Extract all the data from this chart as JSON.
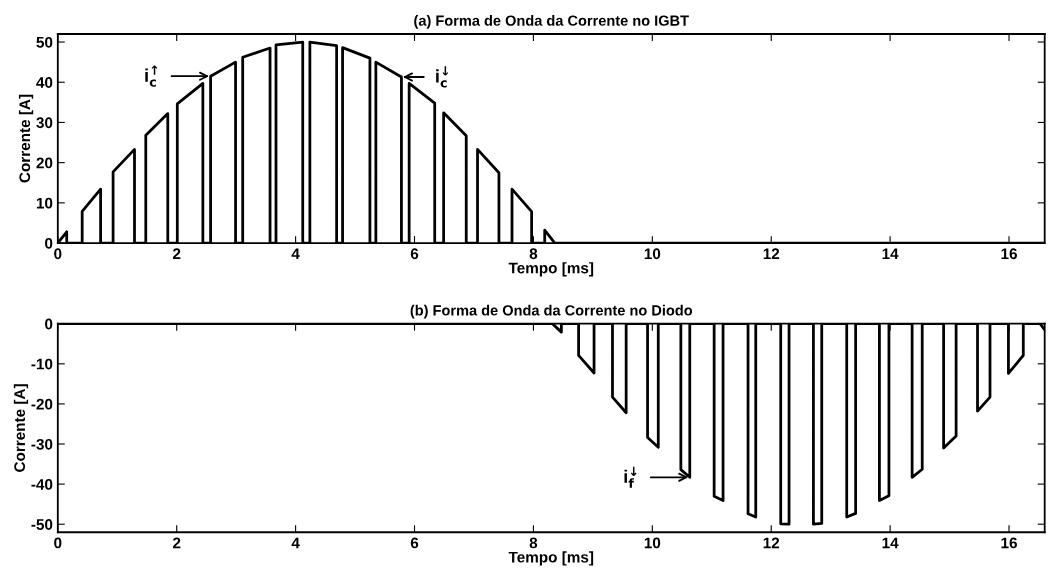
{
  "chart_data": [
    {
      "type": "line",
      "title": "(a) Forma de Onda da Corrente no IGBT",
      "xlabel": "Tempo [ms]",
      "ylabel": "Corrente [A]",
      "xlim": [
        0,
        16.6
      ],
      "ylim": [
        0,
        52
      ],
      "xticks": [
        0,
        2,
        4,
        6,
        8,
        10,
        12,
        14,
        16
      ],
      "yticks": [
        0,
        10,
        20,
        30,
        40,
        50
      ],
      "series": [
        {
          "color": "#000000",
          "x": [
            0,
            0.15,
            0.15,
            0.41,
            0.41,
            0.72,
            0.72,
            0.93,
            0.93,
            1.29,
            1.29,
            1.48,
            1.48,
            1.85,
            1.85,
            2.01,
            2.01,
            2.44,
            2.44,
            2.57,
            2.57,
            2.99,
            2.99,
            3.11,
            3.11,
            3.57,
            3.57,
            3.67,
            3.67,
            4.12,
            4.12,
            4.24,
            4.24,
            4.69,
            4.69,
            4.79,
            4.79,
            5.25,
            5.25,
            5.35,
            5.35,
            5.78,
            5.78,
            5.91,
            5.91,
            6.34,
            6.34,
            6.49,
            6.49,
            6.87,
            6.87,
            7.06,
            7.06,
            7.42,
            7.42,
            7.64,
            7.64,
            7.97,
            7.97,
            8.19,
            8.19,
            8.36,
            16.6
          ],
          "values": [
            0,
            2.8,
            0,
            0,
            7.9,
            13.4,
            0,
            0,
            17.7,
            23.3,
            0,
            0,
            26.8,
            32.2,
            0,
            0,
            34.6,
            39.7,
            0,
            0,
            41.5,
            45.0,
            0,
            0,
            46.2,
            48.5,
            0,
            0,
            49.3,
            50.0,
            0,
            0,
            50.0,
            49.1,
            0,
            0,
            48.6,
            46.0,
            0,
            0,
            45.0,
            41.3,
            0,
            0,
            39.7,
            34.8,
            0,
            0,
            32.4,
            26.7,
            0,
            0,
            23.3,
            17.5,
            0,
            0,
            13.4,
            7.8,
            0,
            0,
            3.2,
            0,
            0
          ]
        }
      ],
      "annotations": [
        {
          "text": "i$^{↑}$$_{c}$",
          "x": 2.57,
          "y": 41.5
        },
        {
          "text": "i$^{↓}$$_{c}$",
          "x": 5.78,
          "y": 41.3
        }
      ]
    },
    {
      "type": "line",
      "title": "(b) Forma de Onda da Corrente no Diodo",
      "xlabel": "Tempo [ms]",
      "ylabel": "Corrente [A]",
      "xlim": [
        0,
        16.6
      ],
      "ylim": [
        -52,
        0
      ],
      "xticks": [
        0,
        2,
        4,
        6,
        8,
        10,
        12,
        14,
        16
      ],
      "yticks": [
        -50,
        -40,
        -30,
        -20,
        -10,
        0
      ],
      "series": [
        {
          "color": "#000000",
          "x": [
            0,
            8.32,
            8.47,
            8.47,
            8.76,
            8.76,
            9.02,
            9.02,
            9.33,
            9.33,
            9.56,
            9.56,
            9.92,
            9.92,
            10.1,
            10.1,
            10.48,
            10.48,
            10.63,
            10.63,
            11.04,
            11.04,
            11.19,
            11.19,
            11.61,
            11.61,
            11.74,
            11.74,
            12.16,
            12.16,
            12.3,
            12.3,
            12.71,
            12.71,
            12.85,
            12.85,
            13.27,
            13.27,
            13.42,
            13.42,
            13.82,
            13.82,
            13.98,
            13.98,
            14.37,
            14.37,
            14.54,
            14.54,
            14.9,
            14.9,
            15.11,
            15.11,
            15.47,
            15.47,
            15.68,
            15.68,
            15.99,
            15.99,
            16.24,
            16.24,
            16.52,
            16.6
          ],
          "values": [
            0,
            0,
            -2.1,
            0,
            0,
            -7.9,
            -12.3,
            0,
            0,
            -18.3,
            -22.2,
            0,
            0,
            -28.4,
            -30.8,
            0,
            0,
            -36.4,
            -38.3,
            0,
            0,
            -43.0,
            -44.1,
            0,
            0,
            -47.4,
            -48.2,
            0,
            0,
            -49.9,
            -50.0,
            0,
            0,
            -50.0,
            -49.8,
            0,
            0,
            -48.2,
            -47.3,
            0,
            0,
            -44.1,
            -42.9,
            0,
            0,
            -38.3,
            -36.3,
            0,
            0,
            -31.0,
            -28.0,
            0,
            0,
            -21.8,
            -18.3,
            0,
            0,
            -12.4,
            -7.9,
            0,
            0,
            -1.5
          ]
        }
      ],
      "annotations": [
        {
          "text": "i$^{↓}$$_{f}$",
          "x": 10.63,
          "y": -38.3
        }
      ]
    }
  ]
}
